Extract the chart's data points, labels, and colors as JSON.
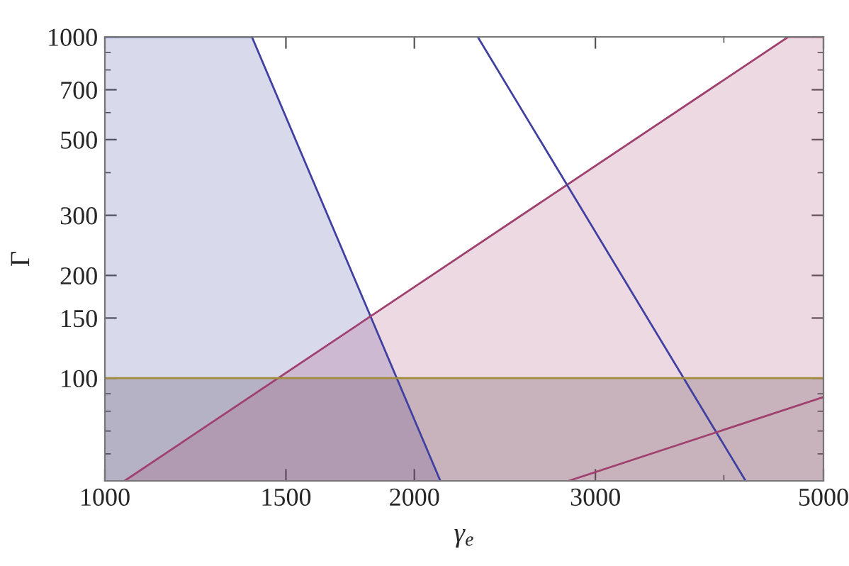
{
  "chart_data": {
    "type": "line",
    "xlabel": "γ$_{e}$",
    "ylabel": "Γ",
    "log": "xy",
    "xlim": [
      1000,
      5000
    ],
    "ylim": [
      50,
      1000
    ],
    "xticks": [
      1000,
      1500,
      2000,
      3000,
      5000
    ],
    "yticks": [
      100,
      150,
      200,
      300,
      500,
      700,
      1000
    ],
    "grid": false,
    "legend": false,
    "marker": "none",
    "line_style": "solid",
    "bands": [
      {
        "axis": "y",
        "from": 50,
        "to": 100,
        "color": "#504040"
      }
    ],
    "ref_lines": [
      {
        "axis": "y",
        "value": 100,
        "color": "#a08c3c"
      }
    ],
    "series": [
      {
        "type": "area",
        "color": "#4040a0",
        "x": [
          1000,
          1390,
          2120
        ],
        "values": [
          1000,
          1000,
          50
        ]
      },
      {
        "type": "area",
        "color": "#a0406f",
        "x": [
          1045,
          4620,
          5000
        ],
        "values": [
          50,
          1000,
          1000
        ]
      },
      {
        "color": "#4040a0",
        "x": [
          2305,
          4200
        ],
        "values": [
          1000,
          50
        ]
      },
      {
        "color": "#a0406f",
        "x": [
          2825,
          5000
        ],
        "values": [
          50,
          88
        ]
      }
    ]
  }
}
